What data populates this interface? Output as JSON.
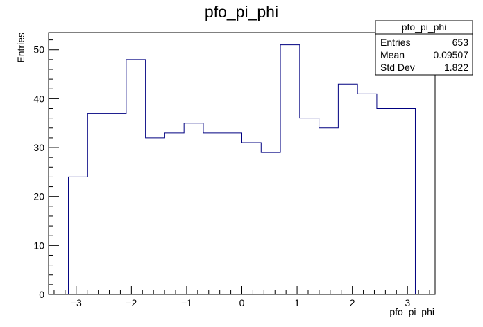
{
  "chart_data": {
    "type": "bar",
    "title": "pfo_pi_phi",
    "xlabel": "pfo_pi_phi",
    "ylabel": "Entries",
    "xlim": [
      -3.5,
      3.5
    ],
    "ylim": [
      0,
      53.5
    ],
    "bin_edges": [
      -3.1416,
      -2.7925,
      -2.4435,
      -2.0944,
      -1.7453,
      -1.3963,
      -1.0472,
      -0.6981,
      -0.3491,
      0.0,
      0.3491,
      0.6981,
      1.0472,
      1.3963,
      1.7453,
      2.0944,
      2.4435,
      2.7925,
      3.1416
    ],
    "values": [
      24,
      37,
      37,
      48,
      32,
      33,
      35,
      33,
      33,
      31,
      29,
      51,
      36,
      34,
      43,
      41,
      38,
      38
    ],
    "x_ticks": [
      -3,
      -2,
      -1,
      0,
      1,
      2,
      3
    ],
    "x_tick_labels": [
      "−3",
      "−2",
      "−1",
      "0",
      "1",
      "2",
      "3"
    ],
    "y_ticks": [
      0,
      10,
      20,
      30,
      40,
      50
    ],
    "y_tick_labels": [
      "0",
      "10",
      "20",
      "30",
      "40",
      "50"
    ],
    "line_color": "#000080",
    "grid": false,
    "legend": "none",
    "stats_box": {
      "title": "pfo_pi_phi",
      "placement": "top-right",
      "rows": [
        {
          "label": "Entries",
          "value": "653"
        },
        {
          "label": "Mean",
          "value": "0.09507"
        },
        {
          "label": "Std Dev",
          "value": "1.822"
        }
      ]
    }
  }
}
